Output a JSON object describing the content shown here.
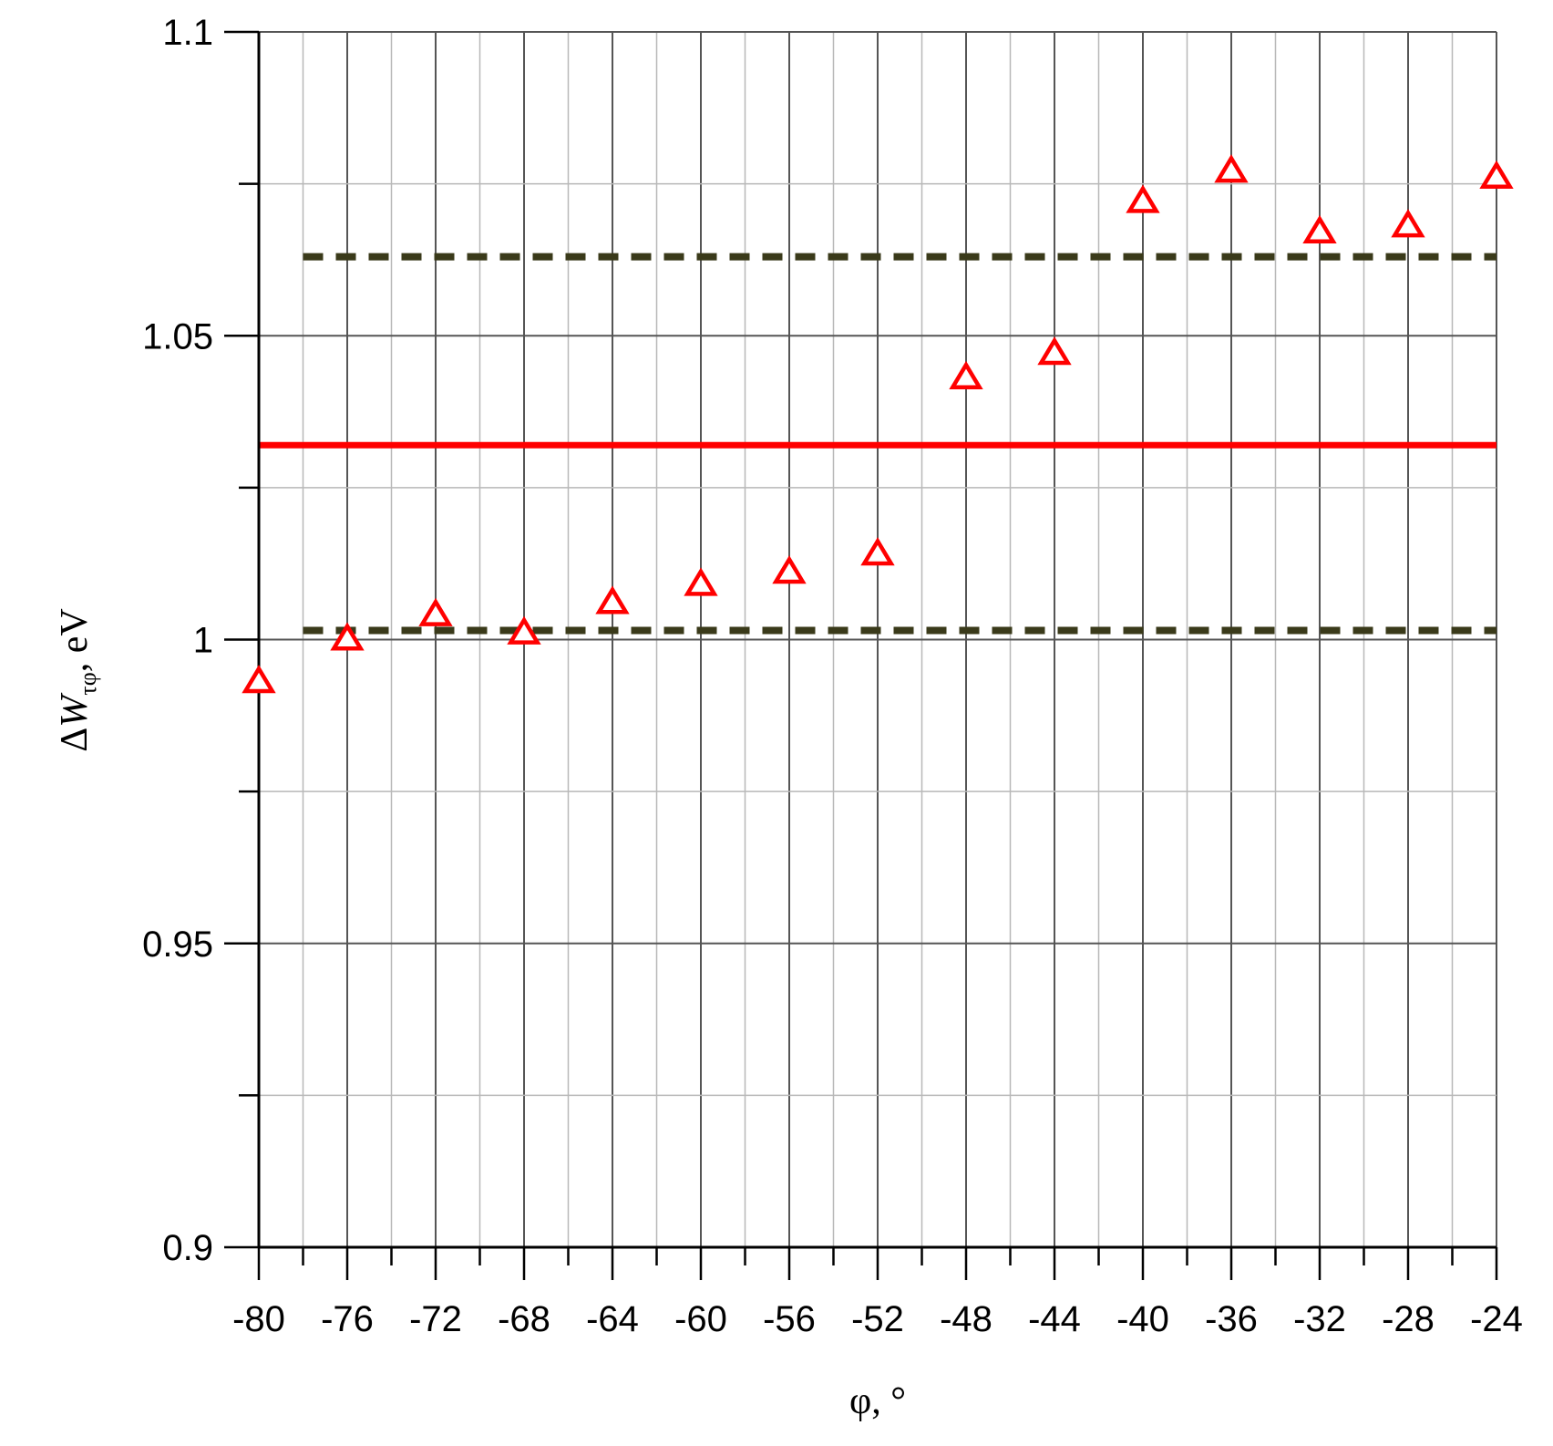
{
  "chart_data": {
    "type": "scatter",
    "title": "",
    "xlabel": "φ, °",
    "ylabel": {
      "delta": "Δ",
      "symbol": "W",
      "subscript": "τφ",
      "unit": ", eV"
    },
    "xlim": [
      -80,
      -24
    ],
    "ylim": [
      0.9,
      1.1
    ],
    "x_ticks": [
      -80,
      -76,
      -72,
      -68,
      -64,
      -60,
      -56,
      -52,
      -48,
      -44,
      -40,
      -36,
      -32,
      -28,
      -24
    ],
    "y_ticks": [
      0.9,
      0.95,
      1,
      1.05,
      1.1
    ],
    "y_tick_labels": [
      "0.9",
      "0.95",
      "1",
      "1.05",
      "1.1"
    ],
    "grid": true,
    "series": [
      {
        "marker": "open-triangle",
        "color": "#ff0000",
        "x": [
          -80,
          -76,
          -72,
          -68,
          -64,
          -60,
          -56,
          -52,
          -48,
          -44,
          -40,
          -36,
          -32,
          -28,
          -24
        ],
        "y": [
          0.993,
          1.0,
          1.004,
          1.001,
          1.006,
          1.009,
          1.011,
          1.014,
          1.043,
          1.047,
          1.072,
          1.077,
          1.067,
          1.068,
          1.076
        ]
      }
    ],
    "reference_lines": [
      {
        "style": "solid",
        "color": "#ff0000",
        "y": 1.032
      },
      {
        "style": "dashed",
        "color": "#3a3a1a",
        "y": 1.063
      },
      {
        "style": "dashed",
        "color": "#3a3a1a",
        "y": 1.0015
      }
    ]
  }
}
